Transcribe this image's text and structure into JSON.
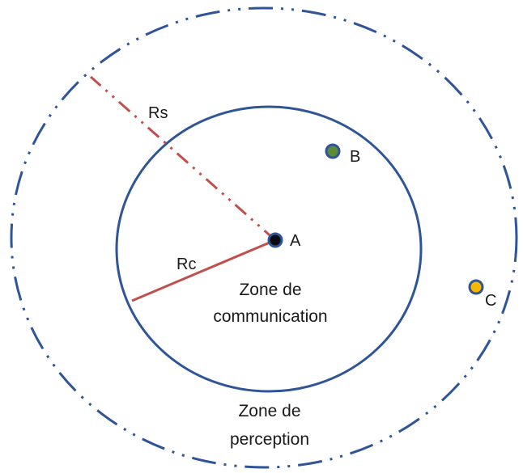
{
  "labels": {
    "radius_sensing": "Rs",
    "radius_communication": "Rc",
    "communication_zone": [
      "Zone de",
      "communication"
    ],
    "perception_zone": [
      "Zone de",
      "perception"
    ]
  },
  "nodes": [
    {
      "id": "A",
      "label": "A",
      "fill": "#0a0a14",
      "stroke": "#2f5597"
    },
    {
      "id": "B",
      "label": "B",
      "fill": "#5a8a3a",
      "stroke": "#2f5597"
    },
    {
      "id": "C",
      "label": "C",
      "fill": "#f5b800",
      "stroke": "#2f5597"
    }
  ],
  "colors": {
    "circle_stroke": "#2f5597",
    "radius_line": "#c0504d"
  }
}
